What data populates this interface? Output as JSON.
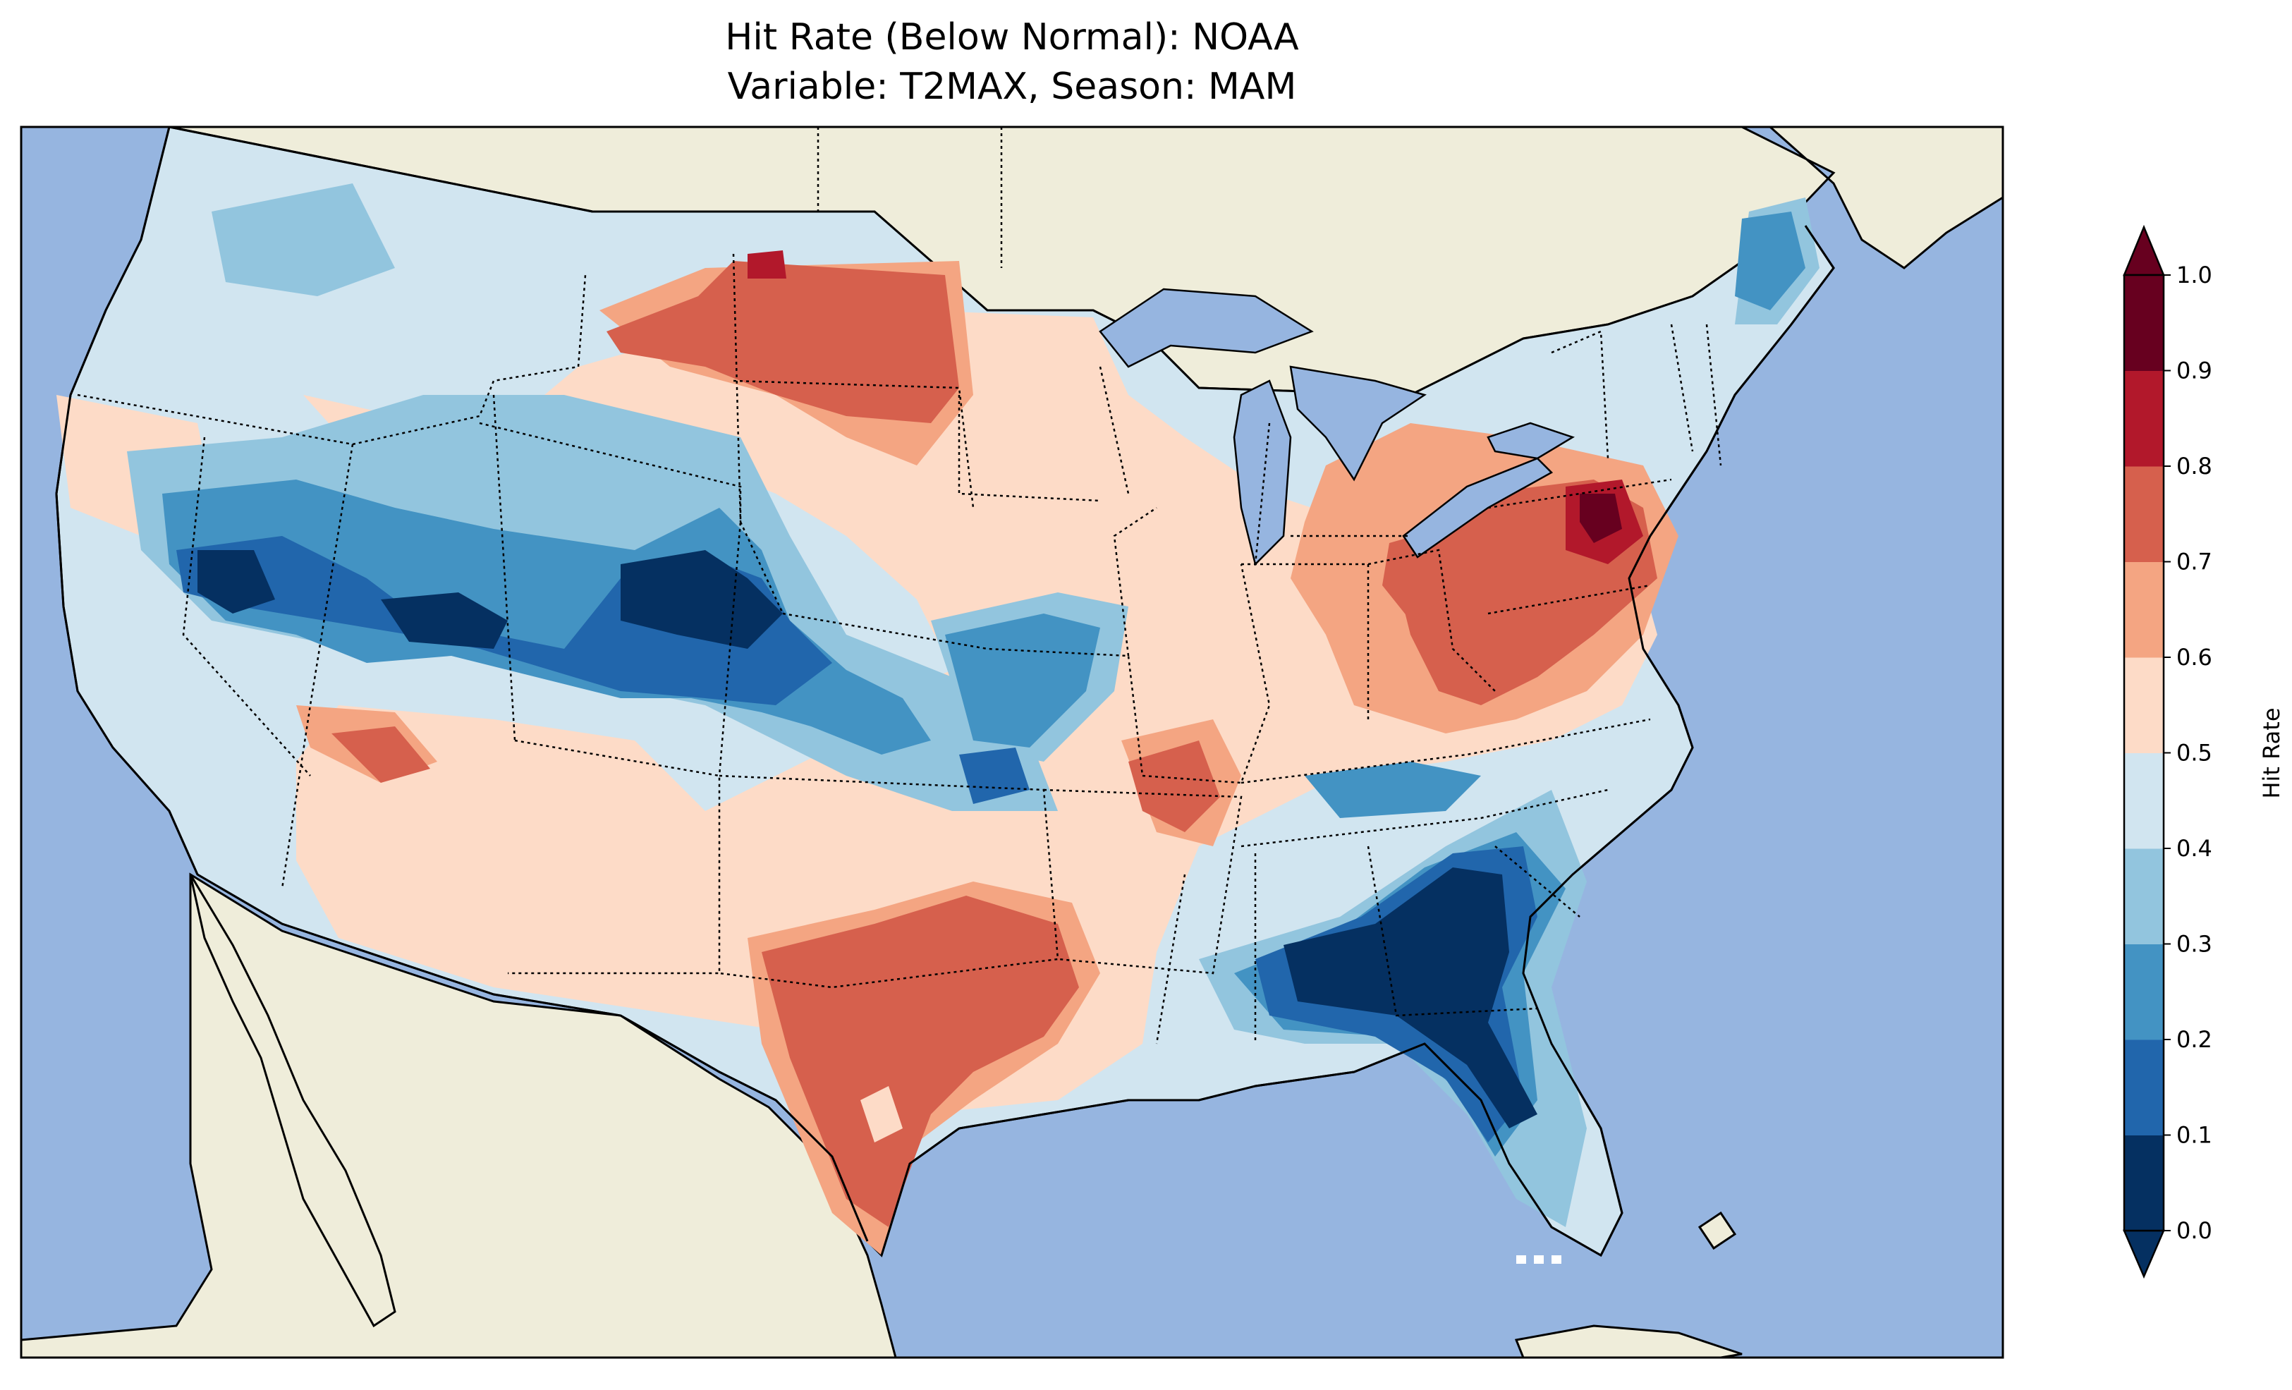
{
  "title": {
    "line1": "Hit Rate (Below Normal): NOAA",
    "line2": "Variable: T2MAX, Season: MAM"
  },
  "colorbar": {
    "label": "Hit Rate",
    "ticks": [
      "0.0",
      "0.1",
      "0.2",
      "0.3",
      "0.4",
      "0.5",
      "0.6",
      "0.7",
      "0.8",
      "0.9",
      "1.0"
    ],
    "colors": [
      "#053061",
      "#2166ac",
      "#4393c3",
      "#92c5de",
      "#d1e5f0",
      "#fddbc7",
      "#f4a582",
      "#d6604d",
      "#b2182b",
      "#67001f"
    ],
    "extend": "both"
  },
  "map_colors": {
    "ocean": "#96b5e0",
    "land": "#efedda"
  }
}
